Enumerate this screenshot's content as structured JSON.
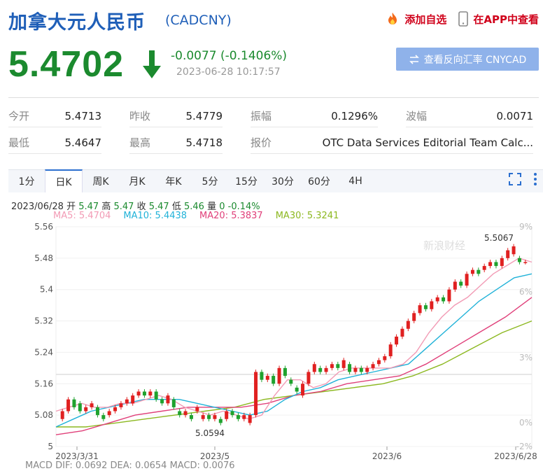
{
  "header": {
    "title": "加拿大元人民币",
    "code": "(CADCNY)",
    "add_watch": "添加自选",
    "view_in_app": "在APP中查看"
  },
  "quote": {
    "price": "5.4702",
    "change": "-0.0077 (-0.1406%)",
    "time": "2023-06-28 10:17:57",
    "reverse_button": "查看反向汇率 CNYCAD"
  },
  "stats": [
    [
      {
        "label": "今开",
        "value": "5.4713"
      },
      {
        "label": "昨收",
        "value": "5.4779"
      },
      {
        "label": "振幅",
        "value": "0.1296%"
      },
      {
        "label": "波幅",
        "value": "0.0071"
      }
    ],
    [
      {
        "label": "最低",
        "value": "5.4647"
      },
      {
        "label": "最高",
        "value": "5.4718"
      },
      {
        "label": "报价",
        "value": "OTC Data Services Editorial Team Calc..."
      }
    ]
  ],
  "tabs": [
    "1分",
    "日K",
    "周K",
    "月K",
    "年K",
    "5分",
    "15分",
    "30分",
    "60分",
    "4H"
  ],
  "active_tab": 1,
  "ohlc_line": {
    "date": "2023/06/28",
    "open_label": "开",
    "open": "5.47",
    "high_label": "高",
    "high": "5.47",
    "close_label": "收",
    "close": "5.47",
    "low_label": "低",
    "low": "5.46",
    "vol_label": "量",
    "vol": "0",
    "pct": "-0.14%"
  },
  "ma_legend": [
    {
      "text": "MA5: 5.4704",
      "color": "#f29bb5"
    },
    {
      "text": "MA10: 5.4438",
      "color": "#20b2d8"
    },
    {
      "text": "MA20: 5.3837",
      "color": "#e0407a"
    },
    {
      "text": "MA30: 5.3241",
      "color": "#8cb820"
    }
  ],
  "watermark": "新浪财经",
  "macd_line": "MACD  DIF: 0.0692    DEA: 0.0654    MACD: 0.0076",
  "colors": {
    "up": "#e02020",
    "down": "#1fa22e",
    "brand": "#1f5fb8"
  },
  "chart_data": {
    "type": "candlestick",
    "y_ticks": [
      "5.56",
      "5.48",
      "5.4",
      "5.32",
      "5.24",
      "5.16",
      "5.08",
      "5"
    ],
    "y_right_ticks": [
      "9%",
      "6%",
      "3%",
      "0%",
      "-2%"
    ],
    "x_ticks": [
      "2023/3/31",
      "2023/5",
      "2023/6",
      "2023/6/28"
    ],
    "ylim": [
      5.0,
      5.56
    ],
    "annotations": [
      {
        "text": "5.5067"
      },
      {
        "text": "5.0594"
      }
    ],
    "candles": [
      [
        5.07,
        5.09
      ],
      [
        5.09,
        5.12
      ],
      [
        5.12,
        5.1
      ],
      [
        5.11,
        5.09
      ],
      [
        5.09,
        5.1
      ],
      [
        5.1,
        5.11
      ],
      [
        5.1,
        5.08
      ],
      [
        5.08,
        5.07
      ],
      [
        5.08,
        5.09
      ],
      [
        5.09,
        5.1
      ],
      [
        5.1,
        5.11
      ],
      [
        5.11,
        5.12
      ],
      [
        5.11,
        5.13
      ],
      [
        5.13,
        5.14
      ],
      [
        5.14,
        5.13
      ],
      [
        5.13,
        5.14
      ],
      [
        5.14,
        5.12
      ],
      [
        5.12,
        5.11
      ],
      [
        5.11,
        5.13
      ],
      [
        5.12,
        5.1
      ],
      [
        5.09,
        5.08
      ],
      [
        5.08,
        5.09
      ],
      [
        5.08,
        5.07
      ],
      [
        5.09,
        5.1
      ],
      [
        5.07,
        5.08
      ],
      [
        5.08,
        5.07
      ],
      [
        5.07,
        5.08
      ],
      [
        5.07,
        5.06
      ],
      [
        5.07,
        5.09
      ],
      [
        5.09,
        5.08
      ],
      [
        5.08,
        5.07
      ],
      [
        5.07,
        5.08
      ],
      [
        5.06,
        5.08
      ],
      [
        5.08,
        5.19
      ],
      [
        5.19,
        5.17
      ],
      [
        5.17,
        5.18
      ],
      [
        5.18,
        5.16
      ],
      [
        5.16,
        5.2
      ],
      [
        5.2,
        5.18
      ],
      [
        5.17,
        5.16
      ],
      [
        5.15,
        5.14
      ],
      [
        5.13,
        5.16
      ],
      [
        5.16,
        5.19
      ],
      [
        5.19,
        5.21
      ],
      [
        5.2,
        5.19
      ],
      [
        5.19,
        5.2
      ],
      [
        5.2,
        5.21
      ],
      [
        5.21,
        5.2
      ],
      [
        5.2,
        5.22
      ],
      [
        5.21,
        5.19
      ],
      [
        5.19,
        5.2
      ],
      [
        5.2,
        5.19
      ],
      [
        5.19,
        5.2
      ],
      [
        5.2,
        5.21
      ],
      [
        5.21,
        5.22
      ],
      [
        5.22,
        5.23
      ],
      [
        5.23,
        5.26
      ],
      [
        5.26,
        5.28
      ],
      [
        5.28,
        5.3
      ],
      [
        5.3,
        5.32
      ],
      [
        5.32,
        5.34
      ],
      [
        5.34,
        5.36
      ],
      [
        5.36,
        5.35
      ],
      [
        5.35,
        5.37
      ],
      [
        5.37,
        5.38
      ],
      [
        5.38,
        5.37
      ],
      [
        5.37,
        5.4
      ],
      [
        5.4,
        5.42
      ],
      [
        5.42,
        5.41
      ],
      [
        5.41,
        5.44
      ],
      [
        5.44,
        5.45
      ],
      [
        5.45,
        5.44
      ],
      [
        5.45,
        5.46
      ],
      [
        5.46,
        5.47
      ],
      [
        5.47,
        5.46
      ],
      [
        5.46,
        5.48
      ],
      [
        5.48,
        5.5
      ],
      [
        5.49,
        5.51
      ],
      [
        5.48,
        5.47
      ],
      [
        5.47,
        5.47
      ]
    ],
    "ma5": [
      5.09,
      5.1,
      5.11,
      5.1,
      5.1,
      5.11,
      5.11,
      5.12,
      5.13,
      5.12,
      5.1,
      5.09,
      5.08,
      5.09,
      5.08,
      5.07,
      5.08,
      5.13,
      5.17,
      5.17,
      5.15,
      5.16,
      5.19,
      5.2,
      5.2,
      5.2,
      5.2,
      5.21,
      5.24,
      5.29,
      5.33,
      5.36,
      5.38,
      5.41,
      5.44,
      5.46,
      5.48,
      5.47
    ],
    "ma10": [
      5.05,
      5.07,
      5.09,
      5.1,
      5.11,
      5.12,
      5.12,
      5.12,
      5.11,
      5.1,
      5.09,
      5.08,
      5.09,
      5.12,
      5.14,
      5.15,
      5.17,
      5.18,
      5.19,
      5.2,
      5.21,
      5.25,
      5.29,
      5.33,
      5.37,
      5.4,
      5.43,
      5.44
    ],
    "ma20": [
      5.03,
      5.04,
      5.06,
      5.08,
      5.09,
      5.1,
      5.1,
      5.1,
      5.11,
      5.13,
      5.14,
      5.16,
      5.17,
      5.18,
      5.21,
      5.25,
      5.29,
      5.33,
      5.38
    ],
    "ma30": [
      5.05,
      5.05,
      5.06,
      5.07,
      5.08,
      5.09,
      5.1,
      5.12,
      5.13,
      5.14,
      5.15,
      5.16,
      5.18,
      5.21,
      5.25,
      5.29,
      5.32
    ]
  }
}
